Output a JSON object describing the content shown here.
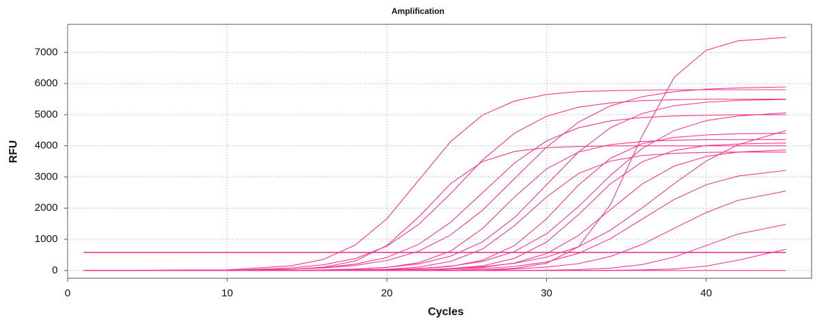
{
  "chart_data": {
    "type": "line",
    "title": "Amplification",
    "x_label": "Cycles",
    "y_label": "RFU",
    "color": "#f0358f",
    "grid": true,
    "threshold": 580,
    "xlim": [
      0,
      46.6
    ],
    "ylim": [
      -250,
      7900
    ],
    "xticks": [
      0,
      10,
      20,
      30,
      40
    ],
    "yticks": [
      0,
      1000,
      2000,
      3000,
      4000,
      5000,
      6000,
      7000
    ],
    "x": [
      1,
      10,
      14,
      16,
      18,
      20,
      22,
      24,
      26,
      28,
      30,
      32,
      34,
      36,
      38,
      40,
      42,
      45
    ],
    "series": [
      {
        "values": [
          0,
          20,
          150,
          350,
          810,
          1660,
          2900,
          4140,
          4990,
          5440,
          5650,
          5740,
          5770,
          5790,
          5800,
          5800,
          5800,
          5800
        ]
      },
      {
        "values": [
          0,
          0,
          35,
          105,
          300,
          800,
          1720,
          2790,
          3500,
          3820,
          3940,
          3980,
          4000,
          4000,
          4000,
          4000,
          4000,
          4000
        ]
      },
      {
        "values": [
          0,
          0,
          80,
          180,
          380,
          780,
          1480,
          2470,
          3550,
          4410,
          4950,
          5240,
          5380,
          5450,
          5480,
          5500,
          5500,
          5500
        ]
      },
      {
        "values": [
          0,
          0,
          40,
          90,
          200,
          420,
          840,
          1550,
          2500,
          3450,
          4160,
          4580,
          4800,
          4910,
          4960,
          4980,
          5000,
          5000
        ]
      },
      {
        "values": [
          0,
          0,
          0,
          10,
          35,
          95,
          250,
          620,
          1350,
          2360,
          3260,
          3800,
          4040,
          4140,
          4180,
          4200,
          4200,
          4200
        ]
      },
      {
        "values": [
          0,
          0,
          40,
          80,
          160,
          320,
          620,
          1140,
          1940,
          2950,
          3960,
          4760,
          5280,
          5580,
          5740,
          5820,
          5860,
          5890
        ]
      },
      {
        "values": [
          0,
          0,
          0,
          0,
          15,
          40,
          110,
          290,
          690,
          1440,
          2360,
          3110,
          3510,
          3690,
          3760,
          3790,
          3800,
          3800
        ]
      },
      {
        "values": [
          0,
          0,
          0,
          20,
          45,
          100,
          210,
          460,
          920,
          1700,
          2750,
          3800,
          4580,
          5040,
          5290,
          5400,
          5460,
          5490
        ]
      },
      {
        "values": [
          0,
          0,
          0,
          0,
          0,
          20,
          50,
          130,
          330,
          800,
          1660,
          2740,
          3600,
          4070,
          4270,
          4350,
          4390,
          4400
        ]
      },
      {
        "values": [
          0,
          0,
          0,
          0,
          0,
          0,
          0,
          0,
          20,
          70,
          230,
          760,
          2110,
          4330,
          6200,
          7070,
          7370,
          7480
        ]
      },
      {
        "values": [
          0,
          0,
          0,
          0,
          0,
          0,
          20,
          60,
          150,
          390,
          910,
          1790,
          2780,
          3490,
          3850,
          4010,
          4060,
          4090
        ]
      },
      {
        "values": [
          0,
          0,
          0,
          0,
          0,
          30,
          60,
          140,
          290,
          610,
          1180,
          2050,
          3050,
          3920,
          4490,
          4810,
          4960,
          5060
        ]
      },
      {
        "values": [
          0,
          0,
          0,
          0,
          0,
          0,
          0,
          40,
          100,
          240,
          540,
          1120,
          1950,
          2780,
          3350,
          3660,
          3800,
          3870
        ]
      },
      {
        "values": [
          0,
          0,
          0,
          0,
          0,
          0,
          0,
          0,
          60,
          130,
          270,
          550,
          1020,
          1650,
          2280,
          2750,
          3030,
          3210
        ]
      },
      {
        "values": [
          0,
          0,
          0,
          0,
          0,
          0,
          0,
          60,
          120,
          230,
          430,
          760,
          1290,
          2010,
          2790,
          3510,
          4040,
          4490
        ]
      },
      {
        "values": [
          0,
          0,
          0,
          0,
          0,
          0,
          0,
          0,
          0,
          50,
          110,
          220,
          450,
          840,
          1350,
          1860,
          2250,
          2550
        ]
      },
      {
        "values": [
          0,
          0,
          0,
          0,
          0,
          0,
          0,
          0,
          0,
          0,
          10,
          30,
          75,
          190,
          430,
          800,
          1170,
          1480
        ]
      },
      {
        "values": [
          0,
          0,
          0,
          0,
          0,
          0,
          0,
          0,
          0,
          0,
          0,
          0,
          5,
          20,
          50,
          140,
          330,
          680
        ]
      },
      {
        "values": [
          0,
          0,
          0,
          0,
          0,
          0,
          0,
          0,
          0,
          0,
          0,
          0,
          0,
          0,
          0,
          0,
          0,
          0
        ]
      }
    ]
  }
}
